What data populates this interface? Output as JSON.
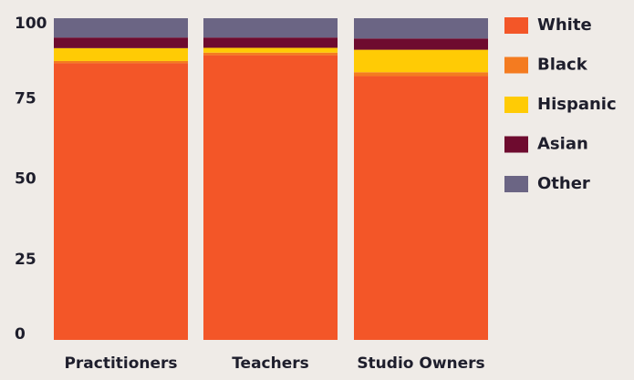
{
  "chart_data": {
    "type": "bar",
    "stacked": true,
    "categories": [
      "Practitioners",
      "Teachers",
      "Studio Owners"
    ],
    "ylim": [
      0,
      100
    ],
    "yticks": [
      0,
      25,
      50,
      75,
      100
    ],
    "series": [
      {
        "name": "White",
        "color": "#f35628",
        "values": [
          86,
          88.5,
          82
        ]
      },
      {
        "name": "Black",
        "color": "#f47b20",
        "values": [
          0.7,
          0.8,
          1.2
        ]
      },
      {
        "name": "Hispanic",
        "color": "#ffcb05",
        "values": [
          4,
          1.5,
          7
        ]
      },
      {
        "name": "Asian",
        "color": "#6e0b2f",
        "values": [
          3.3,
          3.2,
          3.5
        ]
      },
      {
        "name": "Other",
        "color": "#6b6584",
        "values": [
          6,
          6,
          6.3
        ]
      }
    ],
    "legend_position": "right",
    "grid": false,
    "title": "",
    "xlabel": "",
    "ylabel": ""
  }
}
